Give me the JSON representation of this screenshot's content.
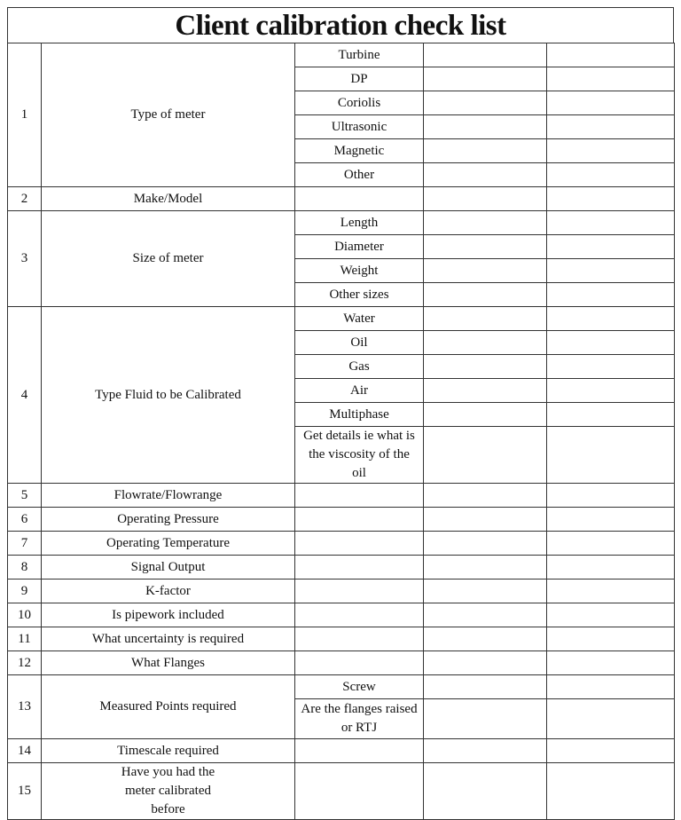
{
  "title": "Client calibration check list",
  "rows": [
    {
      "number": "1",
      "label": "Type of meter",
      "options": [
        "Turbine",
        "DP",
        "Coriolis",
        "Ultrasonic",
        "Magnetic",
        "Other"
      ]
    },
    {
      "number": "2",
      "label": "Make/Model",
      "options": [
        ""
      ]
    },
    {
      "number": "3",
      "label": "Size of meter",
      "options": [
        "Length",
        "Diameter",
        "Weight",
        "Other sizes"
      ]
    },
    {
      "number": "4",
      "label": "Type Fluid to be Calibrated",
      "options": [
        "Water",
        "Oil",
        "Gas",
        "Air",
        "Multiphase",
        "Get details ie what is the viscosity of the oil"
      ]
    },
    {
      "number": "5",
      "label": "Flowrate/Flowrange",
      "options": [
        ""
      ]
    },
    {
      "number": "6",
      "label": "Operating Pressure",
      "options": [
        ""
      ]
    },
    {
      "number": "7",
      "label": "Operating Temperature",
      "options": [
        ""
      ]
    },
    {
      "number": "8",
      "label": "Signal Output",
      "options": [
        ""
      ]
    },
    {
      "number": "9",
      "label": "K-factor",
      "options": [
        ""
      ]
    },
    {
      "number": "10",
      "label": "Is pipework included",
      "options": [
        ""
      ]
    },
    {
      "number": "11",
      "label": "What uncertainty is required",
      "options": [
        ""
      ]
    },
    {
      "number": "12",
      "label": "What Flanges",
      "options": [
        ""
      ]
    },
    {
      "number": "13",
      "label": "Measured Points required",
      "options": [
        "Screw",
        "Are the flanges raised or RTJ"
      ]
    },
    {
      "number": "14",
      "label": "Timescale required",
      "options": [
        ""
      ]
    },
    {
      "number": "15",
      "label": "Have you had the meter calibrated before",
      "options": [
        ""
      ]
    }
  ]
}
